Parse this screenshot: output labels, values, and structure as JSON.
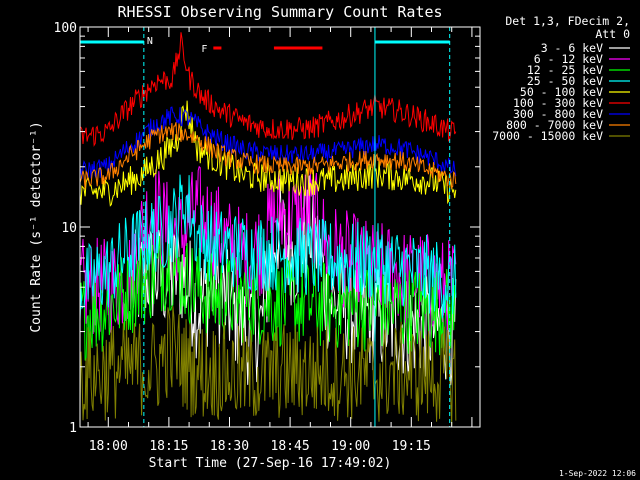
{
  "chart_data": {
    "type": "line",
    "title": "RHESSI Observing Summary Count Rates",
    "xlabel": "Start Time (27-Sep-16 17:49:02)",
    "ylabel": "Count Rate (s⁻¹ detector⁻¹)",
    "yscale": "log",
    "ylim": [
      1,
      100
    ],
    "xlim_minutes": [
      -7,
      92
    ],
    "y_ticks": [
      {
        "value": 1,
        "label": "1"
      },
      {
        "value": 10,
        "label": "10"
      },
      {
        "value": 100,
        "label": "100"
      }
    ],
    "x_ticks": [
      {
        "minute": 0,
        "label": "18:00"
      },
      {
        "minute": 15,
        "label": "18:15"
      },
      {
        "minute": 30,
        "label": "18:30"
      },
      {
        "minute": 45,
        "label": "18:45"
      },
      {
        "minute": 60,
        "label": "19:00"
      },
      {
        "minute": 75,
        "label": "19:15"
      }
    ],
    "legend_header": [
      "Det 1,3, FDecim 2,",
      "Att 0"
    ],
    "legend_position": "right",
    "annotations": {
      "night_label": "N",
      "flare_label": "F",
      "night_intervals": [
        [
          -7,
          8.8
        ],
        [
          66,
          84.5
        ]
      ],
      "flare_bars": [
        [
          26,
          28
        ],
        [
          41,
          53
        ]
      ],
      "saa_lines_minutes": [
        66
      ]
    },
    "series": [
      {
        "name": "3 - 6 keV",
        "color": "#ffffff",
        "x": [
          6,
          10,
          14,
          18,
          22,
          26,
          30,
          34,
          38,
          42,
          46,
          50,
          54,
          58,
          62,
          66,
          70,
          74,
          78,
          82,
          86
        ],
        "y": [
          5,
          6,
          5.5,
          6,
          4,
          5,
          4,
          3,
          3.2,
          10,
          7,
          10,
          4.5,
          4,
          3.6,
          3.5,
          3.3,
          3.2,
          3.2,
          3.1,
          3.0
        ]
      },
      {
        "name": "6 - 12 keV",
        "color": "#ff00ff",
        "x": [
          -7,
          0,
          5,
          8,
          11,
          14,
          18,
          22,
          26,
          30,
          34,
          38,
          42,
          46,
          50,
          54,
          58,
          62,
          66,
          70,
          74,
          78,
          82,
          86
        ],
        "y": [
          5,
          5,
          5.5,
          9,
          13,
          10,
          9,
          12,
          10,
          8,
          7,
          8,
          12,
          11,
          12,
          8,
          7,
          6.5,
          6,
          6,
          5.5,
          5.5,
          5,
          5
        ]
      },
      {
        "name": "12 - 25 keV",
        "color": "#00ff00",
        "x": [
          -7,
          0,
          10,
          15,
          19,
          25,
          40,
          60,
          86
        ],
        "y": [
          3.5,
          4,
          5.5,
          6.5,
          5.5,
          4.5,
          4.2,
          4,
          3.8
        ]
      },
      {
        "name": "25 - 50 keV",
        "color": "#00ffff",
        "x": [
          -7,
          0,
          5,
          10,
          14,
          17,
          19,
          22,
          27,
          34,
          40,
          50,
          60,
          70,
          86
        ],
        "y": [
          5,
          6,
          7.5,
          9,
          9.5,
          11,
          14,
          9,
          8,
          7.5,
          7.5,
          7,
          6.8,
          6.5,
          5.2
        ]
      },
      {
        "name": "50 - 100 keV",
        "color": "#ffff00",
        "x": [
          -7,
          0,
          8,
          13,
          17,
          19,
          22,
          26,
          34,
          46,
          54,
          60,
          66,
          70,
          80,
          86
        ],
        "y": [
          15,
          15,
          18,
          22,
          27,
          40,
          25,
          22,
          18,
          17,
          17,
          17.5,
          18.5,
          18,
          17,
          15
        ]
      },
      {
        "name": "100 - 300 keV",
        "color": "#ff0000",
        "x": [
          -7,
          0,
          8,
          12,
          16,
          18,
          20,
          23,
          28,
          34,
          40,
          50,
          58,
          66,
          72,
          80,
          86
        ],
        "y": [
          28,
          30,
          45,
          54,
          55,
          82,
          56,
          45,
          38,
          33,
          31,
          31,
          35,
          40,
          38,
          33,
          29
        ]
      },
      {
        "name": "300 - 800 keV",
        "color": "#0000ff",
        "x": [
          -7,
          0,
          8,
          12,
          16,
          20,
          24,
          28,
          34,
          42,
          50,
          58,
          66,
          72,
          80,
          86
        ],
        "y": [
          19,
          20,
          28,
          33,
          36,
          35,
          30,
          27,
          24,
          23,
          23,
          24,
          26,
          25,
          22,
          19
        ]
      },
      {
        "name": "800 - 7000 keV",
        "color": "#ff8000",
        "x": [
          -7,
          0,
          8,
          12,
          16,
          20,
          24,
          28,
          34,
          42,
          50,
          58,
          66,
          72,
          80,
          86
        ],
        "y": [
          17,
          18,
          25,
          29,
          30,
          29,
          26,
          23,
          21,
          20,
          20,
          21,
          22,
          21.5,
          19,
          17
        ]
      },
      {
        "name": "7000 - 15000 keV",
        "color": "#808000",
        "x": [
          -7,
          0,
          8,
          12,
          15,
          20,
          24,
          28,
          34,
          42,
          50,
          58,
          66,
          72,
          80,
          86
        ],
        "y": [
          1.8,
          1.9,
          2.0,
          2.0,
          2.5,
          2.0,
          1.9,
          1.9,
          1.8,
          1.9,
          1.9,
          1.9,
          1.8,
          1.9,
          1.8,
          1.8
        ]
      }
    ]
  },
  "footer": {
    "timestamp": "1-Sep-2022 12:06"
  }
}
